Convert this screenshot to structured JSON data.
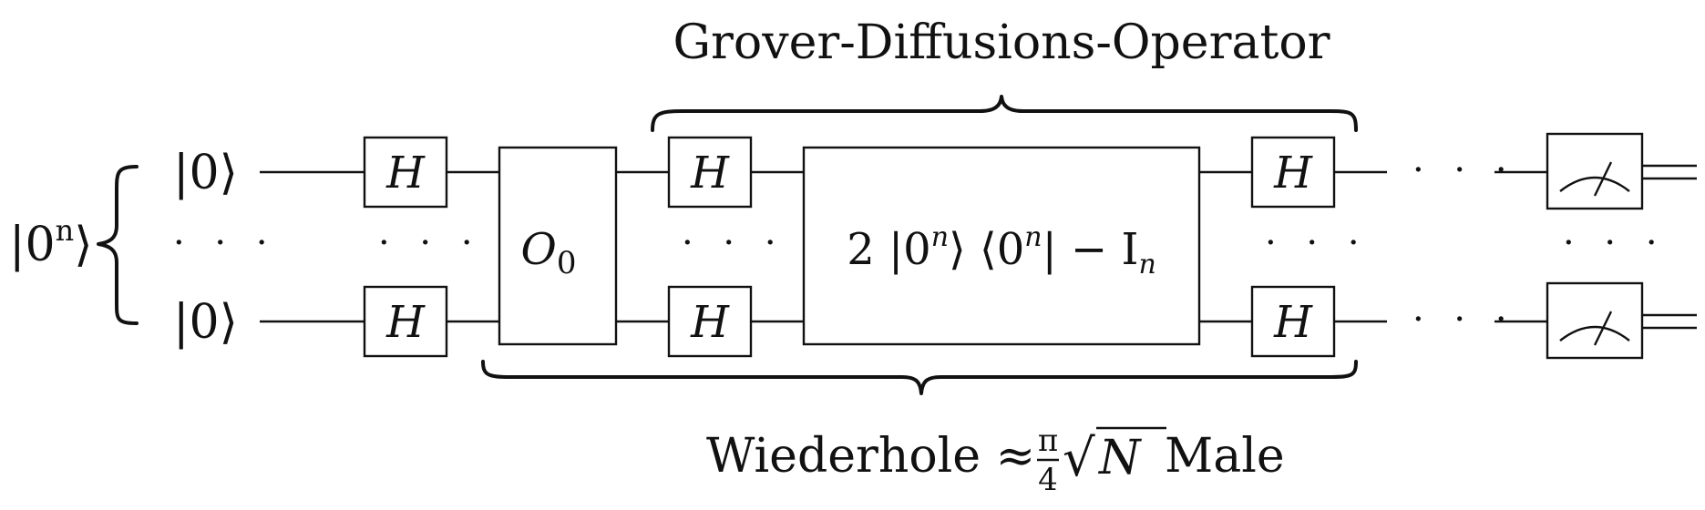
{
  "input_register": {
    "label": "|0",
    "exponent": "n",
    "close": "⟩"
  },
  "qubit_top": {
    "ket": "|0⟩"
  },
  "qubit_dots": "· · ·",
  "qubit_bottom": {
    "ket": "|0⟩"
  },
  "hadamard": {
    "label": "H"
  },
  "oracle": {
    "label": "O",
    "subscript": "0"
  },
  "diffusion_core": {
    "label": "2 |0",
    "exp1": "n",
    "mid": "⟩ ⟨0",
    "exp2": "n",
    "end": "| − I",
    "sub": "n"
  },
  "grover_label": "Grover-Diffusions-Operator",
  "repeat_label": {
    "prefix": "Wiederhole ≈ ",
    "pi": "π",
    "four": "4",
    "sqrt": "√",
    "N": "N",
    "suffix": " Male"
  },
  "ellipsis": "· · ·",
  "measurement": {
    "icon": "meter-icon"
  }
}
